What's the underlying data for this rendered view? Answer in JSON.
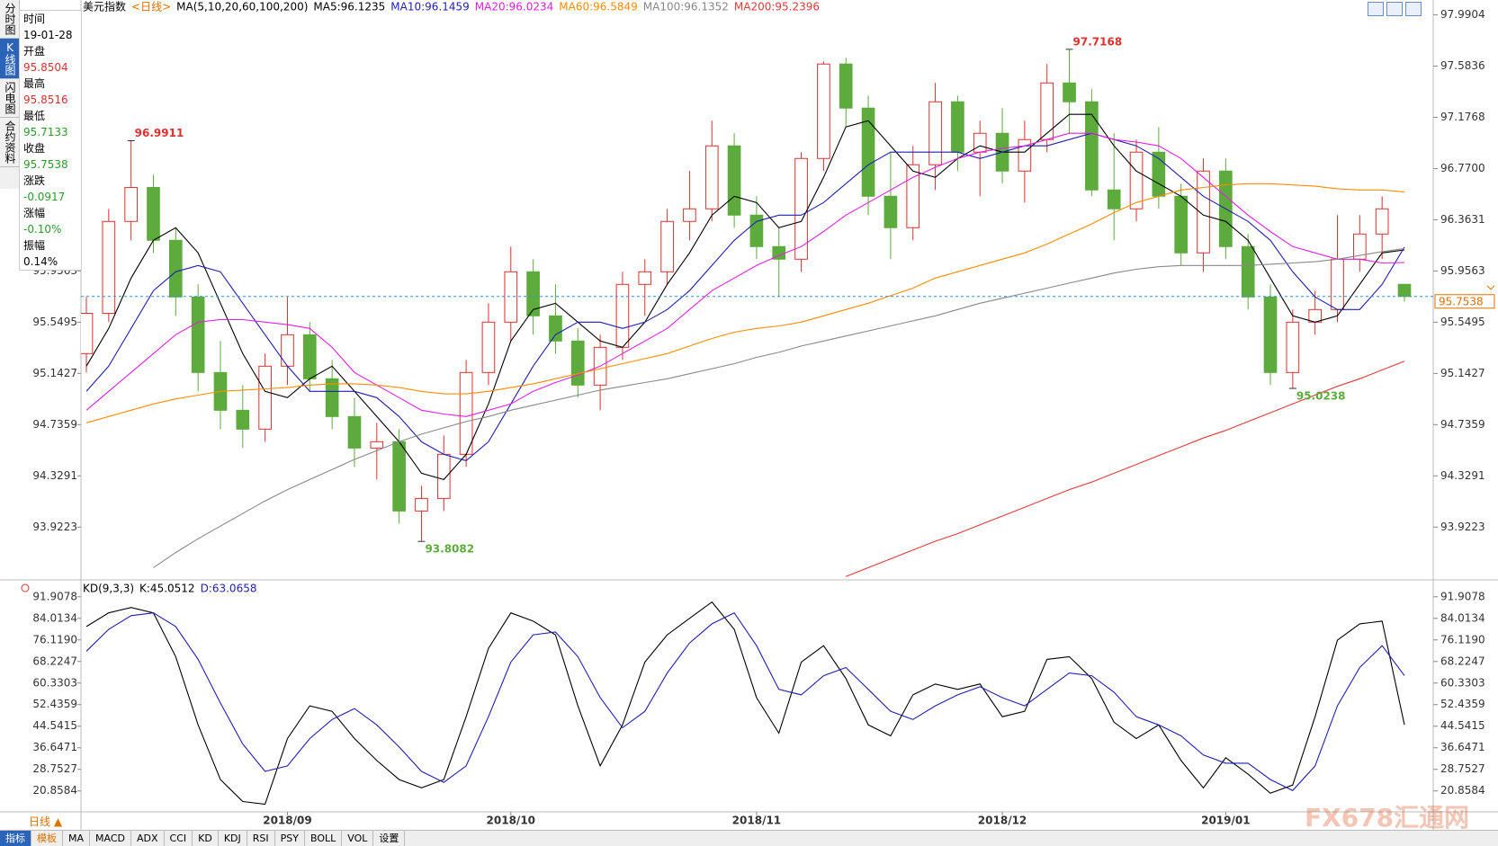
{
  "chart_data": [
    {
      "type": "candlestick",
      "title": "美元指数",
      "period": "<日线>",
      "ma_params": "MA(5,10,20,60,100,200)",
      "categories": [
        null,
        null,
        null,
        null,
        null,
        null,
        null,
        null,
        null,
        "2018/09",
        null,
        null,
        null,
        null,
        null,
        null,
        null,
        null,
        null,
        "2018/10",
        null,
        null,
        null,
        null,
        null,
        null,
        null,
        null,
        null,
        null,
        "2018/11",
        null,
        null,
        null,
        null,
        null,
        null,
        null,
        null,
        null,
        null,
        "2018/12",
        null,
        null,
        null,
        null,
        null,
        null,
        null,
        null,
        null,
        "2019/01",
        null,
        null,
        null,
        null,
        null,
        null,
        null,
        null
      ],
      "ohlc": [
        [
          95.3,
          95.75,
          95.15,
          95.62
        ],
        [
          95.62,
          96.45,
          95.55,
          96.35
        ],
        [
          96.35,
          96.9911,
          96.2,
          96.62
        ],
        [
          96.62,
          96.72,
          96.1,
          96.2
        ],
        [
          96.2,
          96.3,
          95.6,
          95.75
        ],
        [
          95.75,
          95.85,
          95.0,
          95.15
        ],
        [
          95.15,
          95.4,
          94.7,
          94.85
        ],
        [
          94.85,
          95.05,
          94.55,
          94.7
        ],
        [
          94.7,
          95.3,
          94.6,
          95.2
        ],
        [
          95.2,
          95.75,
          95.05,
          95.45
        ],
        [
          95.45,
          95.55,
          95.0,
          95.1
        ],
        [
          95.1,
          95.25,
          94.7,
          94.8
        ],
        [
          94.8,
          94.95,
          94.4,
          94.55
        ],
        [
          94.55,
          94.75,
          94.3,
          94.6
        ],
        [
          94.6,
          94.7,
          93.95,
          94.05
        ],
        [
          94.05,
          94.25,
          93.8082,
          94.15
        ],
        [
          94.15,
          94.65,
          94.05,
          94.5
        ],
        [
          94.5,
          95.25,
          94.4,
          95.15
        ],
        [
          95.15,
          95.7,
          95.05,
          95.55
        ],
        [
          95.55,
          96.15,
          95.4,
          95.95
        ],
        [
          95.95,
          96.05,
          95.45,
          95.6
        ],
        [
          95.6,
          95.85,
          95.3,
          95.4
        ],
        [
          95.4,
          95.5,
          94.95,
          95.05
        ],
        [
          95.05,
          95.45,
          94.85,
          95.35
        ],
        [
          95.35,
          95.95,
          95.25,
          95.85
        ],
        [
          95.85,
          96.05,
          95.6,
          95.95
        ],
        [
          95.95,
          96.45,
          95.85,
          96.35
        ],
        [
          96.35,
          96.75,
          96.2,
          96.45
        ],
        [
          96.45,
          97.15,
          96.35,
          96.95
        ],
        [
          96.95,
          97.05,
          96.3,
          96.4
        ],
        [
          96.4,
          96.55,
          96.05,
          96.15
        ],
        [
          96.15,
          96.3,
          95.75,
          96.05
        ],
        [
          96.05,
          96.9,
          95.95,
          96.85
        ],
        [
          96.85,
          97.62,
          96.75,
          97.6
        ],
        [
          97.6,
          97.65,
          97.1,
          97.25
        ],
        [
          97.25,
          97.35,
          96.4,
          96.55
        ],
        [
          96.55,
          96.9,
          96.05,
          96.3
        ],
        [
          96.3,
          96.95,
          96.2,
          96.8
        ],
        [
          96.8,
          97.45,
          96.6,
          97.3
        ],
        [
          97.3,
          97.35,
          96.75,
          96.9
        ],
        [
          96.9,
          97.15,
          96.55,
          97.05
        ],
        [
          97.05,
          97.25,
          96.65,
          96.75
        ],
        [
          96.75,
          97.15,
          96.5,
          97.0
        ],
        [
          97.0,
          97.6,
          96.9,
          97.45
        ],
        [
          97.45,
          97.7168,
          97.05,
          97.3
        ],
        [
          97.3,
          97.4,
          96.55,
          96.6
        ],
        [
          96.6,
          97.05,
          96.2,
          96.45
        ],
        [
          96.45,
          97.0,
          96.35,
          96.9
        ],
        [
          96.9,
          97.1,
          96.45,
          96.55
        ],
        [
          96.55,
          96.65,
          96.0,
          96.1
        ],
        [
          96.1,
          96.85,
          95.95,
          96.75
        ],
        [
          96.75,
          96.85,
          96.05,
          96.15
        ],
        [
          96.15,
          96.25,
          95.65,
          95.75
        ],
        [
          95.75,
          95.85,
          95.05,
          95.15
        ],
        [
          95.15,
          95.65,
          95.0238,
          95.55
        ],
        [
          95.55,
          95.8,
          95.45,
          95.65
        ],
        [
          95.65,
          96.4,
          95.55,
          96.05
        ],
        [
          96.05,
          96.4,
          95.95,
          96.25
        ],
        [
          96.25,
          96.55,
          96.05,
          96.45
        ],
        [
          95.8504,
          95.8516,
          95.7133,
          95.7538
        ]
      ],
      "up_color": "#e03030",
      "down_color": "#5cab3c",
      "series": [
        {
          "name": "MA5:96.1235",
          "color": "#000000",
          "values": [
            95.2,
            95.5,
            95.9,
            96.2,
            96.3,
            96.1,
            95.7,
            95.3,
            95.0,
            94.95,
            95.1,
            95.2,
            95.0,
            94.8,
            94.6,
            94.35,
            94.3,
            94.5,
            94.9,
            95.4,
            95.65,
            95.7,
            95.55,
            95.4,
            95.35,
            95.55,
            95.85,
            96.1,
            96.4,
            96.55,
            96.5,
            96.3,
            96.35,
            96.7,
            97.1,
            97.15,
            96.95,
            96.75,
            96.7,
            96.85,
            96.95,
            96.9,
            96.9,
            97.05,
            97.2,
            97.2,
            96.95,
            96.75,
            96.65,
            96.55,
            96.4,
            96.35,
            96.2,
            95.9,
            95.6,
            95.55,
            95.6,
            95.85,
            96.1,
            96.1235
          ]
        },
        {
          "name": "MA10:96.1459",
          "color": "#1f1fb4",
          "values": [
            95.0,
            95.2,
            95.5,
            95.8,
            95.95,
            96.0,
            95.95,
            95.7,
            95.45,
            95.2,
            95.0,
            95.0,
            95.0,
            94.95,
            94.8,
            94.6,
            94.5,
            94.45,
            94.6,
            94.9,
            95.2,
            95.45,
            95.55,
            95.55,
            95.5,
            95.55,
            95.65,
            95.8,
            96.0,
            96.2,
            96.35,
            96.4,
            96.4,
            96.5,
            96.65,
            96.8,
            96.9,
            96.9,
            96.9,
            96.9,
            96.85,
            96.9,
            96.95,
            96.95,
            97.0,
            97.05,
            97.0,
            96.95,
            96.85,
            96.7,
            96.55,
            96.45,
            96.35,
            96.2,
            95.95,
            95.75,
            95.65,
            95.65,
            95.85,
            96.1459
          ]
        },
        {
          "name": "MA20:96.0234",
          "color": "#e020e0",
          "values": [
            94.85,
            95.0,
            95.15,
            95.3,
            95.45,
            95.55,
            95.57,
            95.57,
            95.55,
            95.53,
            95.5,
            95.35,
            95.15,
            95.05,
            94.95,
            94.85,
            94.82,
            94.8,
            94.85,
            94.9,
            95.0,
            95.07,
            95.13,
            95.2,
            95.3,
            95.4,
            95.5,
            95.65,
            95.8,
            95.9,
            96.0,
            96.08,
            96.15,
            96.27,
            96.4,
            96.5,
            96.6,
            96.7,
            96.78,
            96.85,
            96.9,
            96.93,
            96.95,
            97.0,
            97.05,
            97.05,
            97.0,
            96.98,
            96.95,
            96.85,
            96.7,
            96.55,
            96.4,
            96.27,
            96.15,
            96.1,
            96.05,
            96.05,
            96.02,
            96.0234
          ]
        },
        {
          "name": "MA60:96.5849",
          "color": "#ff8c00",
          "values": [
            94.75,
            94.8,
            94.85,
            94.9,
            94.94,
            94.97,
            95.0,
            95.01,
            95.02,
            95.03,
            95.05,
            95.06,
            95.06,
            95.05,
            95.03,
            95.0,
            94.98,
            94.98,
            95.0,
            95.03,
            95.06,
            95.1,
            95.14,
            95.18,
            95.22,
            95.26,
            95.3,
            95.36,
            95.42,
            95.47,
            95.5,
            95.52,
            95.55,
            95.6,
            95.65,
            95.7,
            95.76,
            95.82,
            95.9,
            95.95,
            96.0,
            96.05,
            96.1,
            96.17,
            96.25,
            96.33,
            96.42,
            96.5,
            96.55,
            96.6,
            96.62,
            96.64,
            96.65,
            96.65,
            96.64,
            96.63,
            96.61,
            96.6,
            96.6,
            96.5849
          ]
        },
        {
          "name": "MA100:96.1352",
          "color": "#888888",
          "values": [
            null,
            null,
            null,
            93.6,
            93.72,
            93.83,
            93.93,
            94.03,
            94.13,
            94.22,
            94.3,
            94.38,
            94.46,
            94.53,
            94.6,
            94.66,
            94.71,
            94.76,
            94.8,
            94.85,
            94.89,
            94.93,
            94.97,
            95.01,
            95.04,
            95.07,
            95.1,
            95.14,
            95.18,
            95.22,
            95.27,
            95.31,
            95.36,
            95.4,
            95.44,
            95.48,
            95.52,
            95.56,
            95.6,
            95.65,
            95.7,
            95.74,
            95.78,
            95.82,
            95.86,
            95.9,
            95.94,
            95.97,
            95.99,
            96.0,
            96.0,
            96.0,
            96.0,
            96.01,
            96.02,
            96.03,
            96.05,
            96.08,
            96.11,
            96.1352
          ]
        },
        {
          "name": "MA200:95.2396",
          "color": "#e03a3a",
          "values": [
            null,
            null,
            null,
            null,
            null,
            null,
            null,
            null,
            null,
            null,
            null,
            null,
            null,
            null,
            null,
            null,
            null,
            null,
            null,
            null,
            null,
            null,
            null,
            null,
            null,
            null,
            null,
            null,
            null,
            null,
            null,
            null,
            null,
            null,
            93.53,
            93.6,
            93.67,
            93.74,
            93.81,
            93.87,
            93.94,
            94.01,
            94.08,
            94.15,
            94.22,
            94.28,
            94.35,
            94.42,
            94.49,
            94.56,
            94.63,
            94.69,
            94.76,
            94.83,
            94.9,
            94.97,
            95.04,
            95.1,
            95.17,
            95.2396
          ]
        }
      ],
      "ylim": [
        93.51,
        98.03
      ],
      "yticks": [
        97.9904,
        97.5836,
        97.1768,
        {
          "value": 96.77,
          "label": "96.7700"
        },
        96.3631,
        95.9563,
        95.5495,
        95.1427,
        94.7359,
        94.3291,
        93.9223
      ],
      "last_price": 95.7538,
      "last_color": "#e07000",
      "high_low_labels": [
        96.9911,
        93.8082,
        97.7168,
        95.0238
      ],
      "grid": false
    },
    {
      "type": "line",
      "title": "KD(9,3,3)",
      "series": [
        {
          "name": "K:45.0512",
          "color": "#000000",
          "values": [
            81,
            86,
            88,
            86,
            70,
            45,
            25,
            17,
            16,
            40,
            52,
            50,
            40,
            32,
            25,
            22,
            25,
            48,
            73,
            86,
            83,
            78,
            52,
            30,
            45,
            68,
            78,
            84,
            90,
            80,
            55,
            42,
            68,
            74,
            62,
            45,
            41,
            56,
            60,
            58,
            60,
            48,
            50,
            69,
            70,
            62,
            46,
            40,
            45,
            32,
            22,
            33,
            27,
            20,
            23,
            48,
            76,
            82,
            83,
            45.0512
          ]
        },
        {
          "name": "D:63.0658",
          "color": "#1f1fb4",
          "values": [
            72,
            80,
            85,
            86,
            81,
            69,
            53,
            38,
            28,
            30,
            40,
            47,
            51,
            45,
            37,
            28,
            24,
            30,
            48,
            68,
            78,
            79,
            70,
            55,
            44,
            50,
            64,
            75,
            82,
            86,
            74,
            58,
            56,
            63,
            66,
            58,
            50,
            47,
            52,
            56,
            59,
            55,
            52,
            58,
            64,
            63,
            57,
            48,
            45,
            41,
            34,
            31,
            31,
            25,
            21,
            30,
            52,
            66,
            74,
            63.0658
          ]
        }
      ],
      "ylim": [
        13.2,
        97.1
      ],
      "yticks": [
        91.9078,
        84.0134,
        {
          "value": 76.119,
          "label": "76.1190"
        },
        68.2247,
        60.3303,
        52.4359,
        44.5415,
        36.6471,
        28.7527,
        20.8584
      ],
      "grid": false
    }
  ],
  "sidebar": [
    "分时图",
    "K线图",
    "闪电图",
    "合约资料"
  ],
  "info": [
    {
      "label": "时间",
      "value": "19-01-28",
      "color": "#000000"
    },
    {
      "label": "开盘",
      "value": 95.8504,
      "color": "#e03030"
    },
    {
      "label": "最高",
      "value": 95.8516,
      "color": "#e03030"
    },
    {
      "label": "最低",
      "value": 95.7133,
      "color": "#2a9a2a"
    },
    {
      "label": "收盘",
      "value": 95.7538,
      "color": "#2a9a2a"
    },
    {
      "label": "涨跌",
      "value": -0.0917,
      "color": "#2a9a2a"
    },
    {
      "label": "涨幅",
      "value": "-0.10%",
      "color": "#2a9a2a"
    },
    {
      "label": "振幅",
      "value": "0.14%",
      "color": "#000000"
    }
  ],
  "period_button": "日线 ▲",
  "tabs": [
    "指标",
    "模板",
    "MA",
    "MACD",
    "ADX",
    "CCI",
    "KD",
    "KDJ",
    "RSI",
    "PSY",
    "BOLL",
    "VOL",
    "设置"
  ],
  "watermark": "FX678汇通网"
}
